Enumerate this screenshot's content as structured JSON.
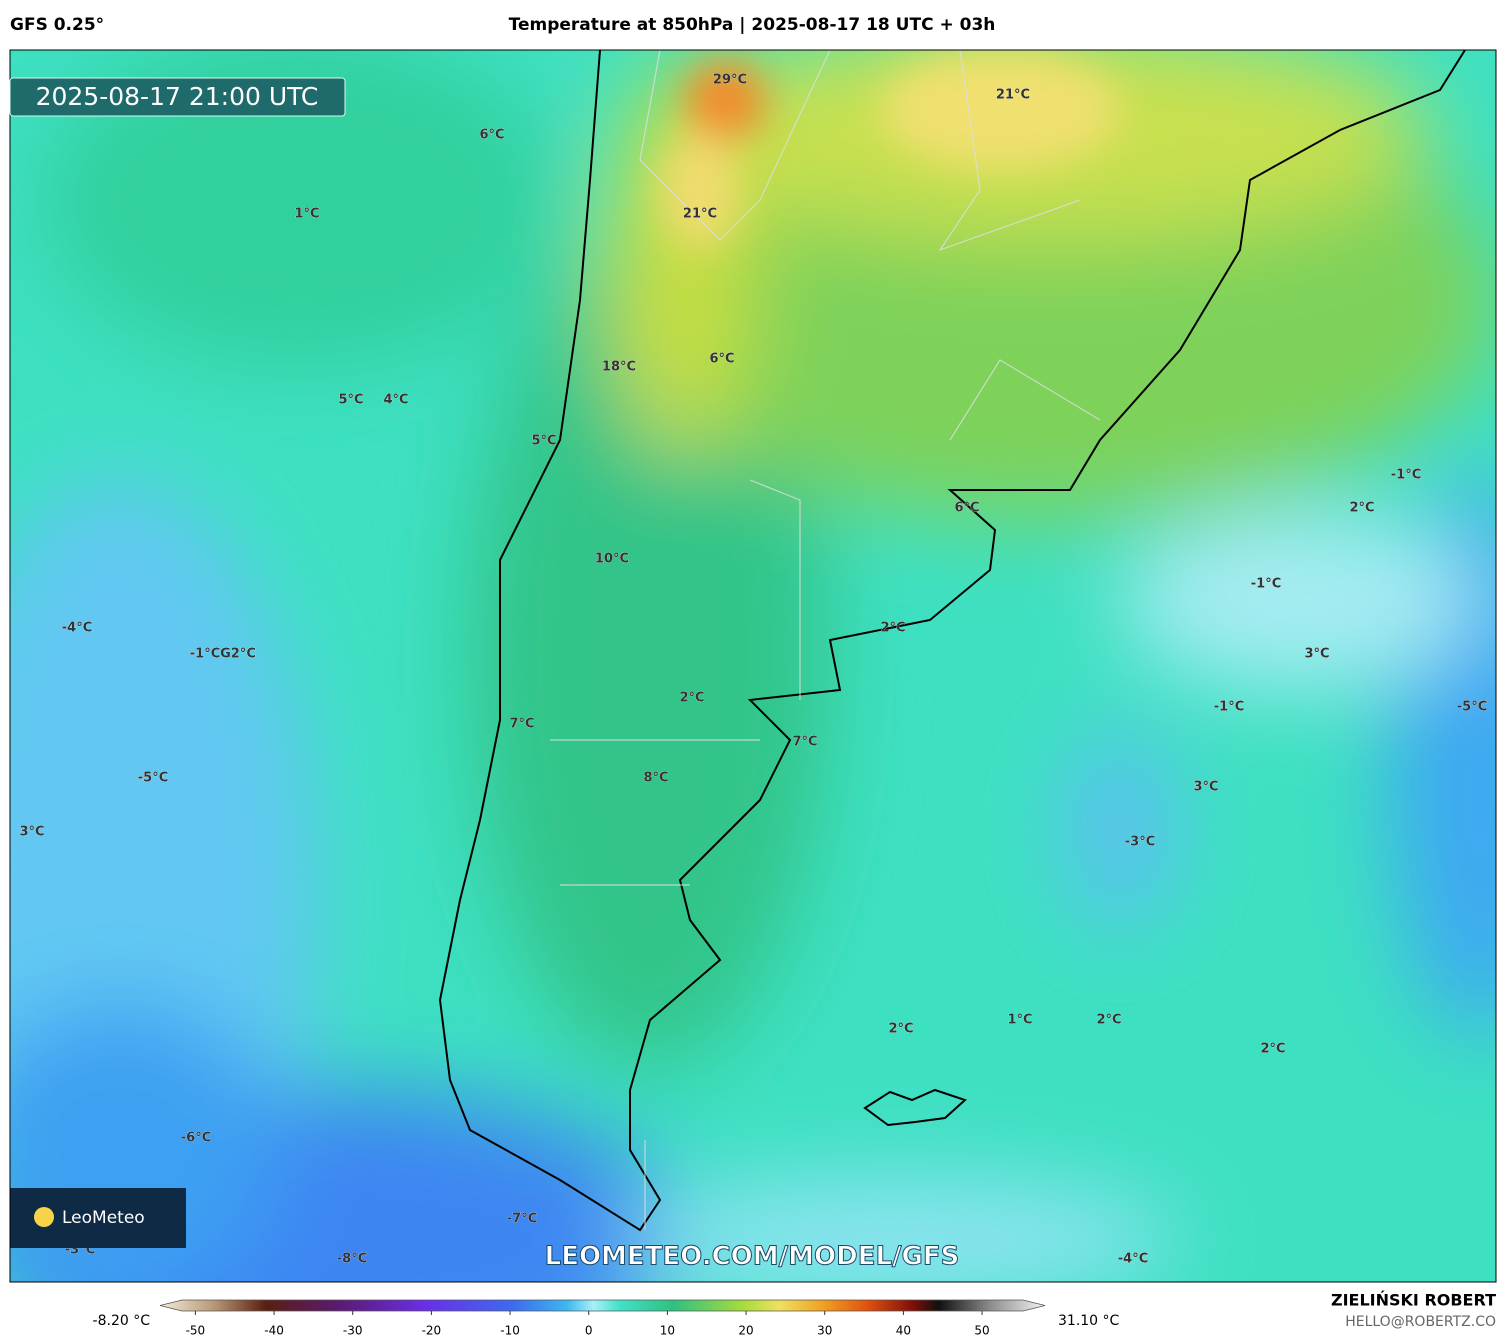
{
  "header": {
    "model": "GFS 0.25°",
    "title": "Temperature at 850hPa | 2025-08-17 18 UTC + 03h"
  },
  "map": {
    "timestamp": "2025-08-17 21:00 UTC",
    "labels": [
      "29°C",
      "21°C",
      "6°C",
      "1°C",
      "21°C",
      "18°C",
      "6°C",
      "5°C",
      "4°C",
      "5°C",
      "-1°C",
      "2°C",
      "6°C",
      "10°C",
      "-1°C",
      "-4°C",
      "2°C",
      "-1°C",
      "G2°C",
      "3°C",
      "2°C",
      "-1°C",
      "-5°C",
      "7°C",
      "7°C",
      "-5°C",
      "8°C",
      "3°C",
      "3°C",
      "-3°C",
      "2°C",
      "1°C",
      "2°C",
      "2°C",
      "-6°C",
      "-7°C",
      "-3°C",
      "-8°C",
      "-4°C"
    ],
    "logo": "LeoMeteo",
    "watermark": "LEOMETEO.COM/MODEL/GFS"
  },
  "colorbar": {
    "min_label": "-8.20 °C",
    "max_label": "31.10 °C",
    "lim": [
      -54.5,
      58
    ],
    "ticks": [
      -50,
      -40,
      -30,
      -20,
      -10,
      0,
      10,
      20,
      30,
      40,
      50
    ]
  },
  "credits": {
    "author": "ZIELIŃSKI ROBERT",
    "email": "HELLO@ROBERTZ.CO"
  }
}
